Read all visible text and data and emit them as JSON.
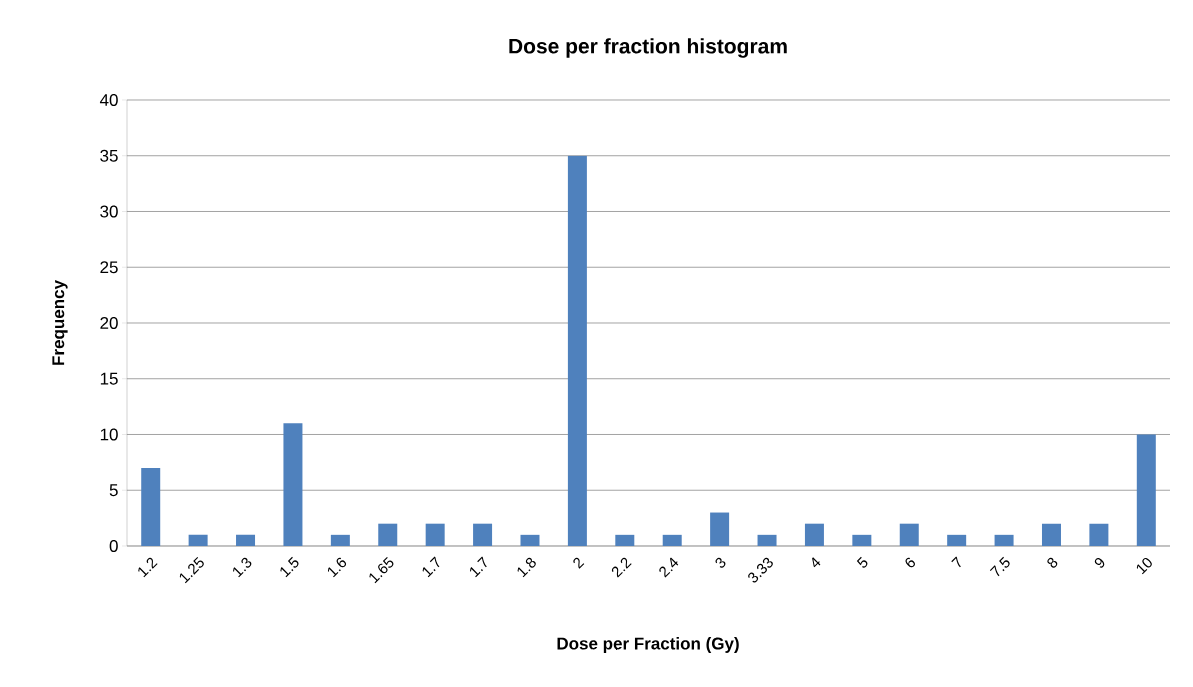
{
  "chart_data": {
    "type": "bar",
    "title": "Dose per fraction histogram",
    "xlabel": "Dose per Fraction (Gy)",
    "ylabel": "Frequency",
    "categories": [
      "1.2",
      "1.25",
      "1.3",
      "1.5",
      "1.6",
      "1.65",
      "1.7",
      "1.7",
      "1.8",
      "2",
      "2.2",
      "2.4",
      "3",
      "3.33",
      "4",
      "5",
      "6",
      "7",
      "7.5",
      "8",
      "9",
      "10"
    ],
    "values": [
      7,
      1,
      1,
      11,
      1,
      2,
      2,
      2,
      1,
      35,
      1,
      1,
      3,
      1,
      2,
      1,
      2,
      1,
      1,
      2,
      2,
      10
    ],
    "color": "#4f81bd",
    "ylim": [
      0,
      40
    ],
    "yticks": [
      0,
      5,
      10,
      15,
      20,
      25,
      30,
      35,
      40
    ],
    "grid": "y"
  }
}
